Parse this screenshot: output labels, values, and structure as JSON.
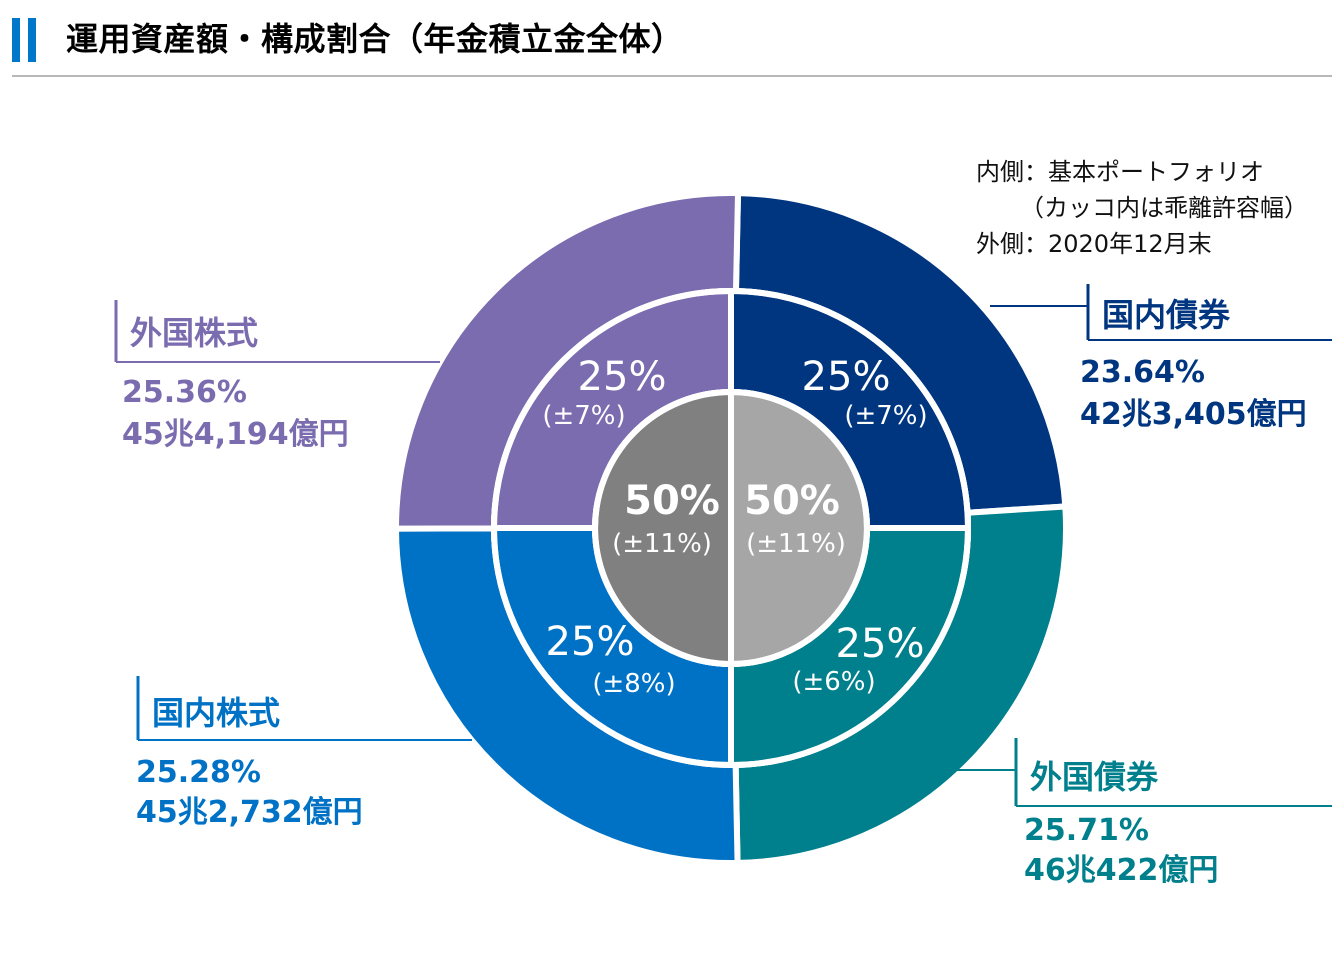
{
  "title": "運用資産額・構成割合（年金積立金全体）",
  "notes": {
    "line1": "内側：基本ポートフォリオ",
    "line2": "（カッコ内は乖離許容幅）",
    "line3": "外側：2020年12月末"
  },
  "colors": {
    "domestic_bonds": "#003580",
    "foreign_bonds": "#007f8c",
    "domestic_stocks": "#0072c6",
    "foreign_stocks": "#7b6baf",
    "bonds_total": "#a6a6a6",
    "stocks_total": "#808080",
    "accent": "#0077c8"
  },
  "chart_data": {
    "type": "pie",
    "rings": [
      {
        "ring": "outer",
        "slices": [
          {
            "key": "domestic_bonds",
            "name": "国内債券",
            "percent_label": "23.64%",
            "amount_label": "42兆3,405億円",
            "value": 23.64
          },
          {
            "key": "foreign_bonds",
            "name": "外国債券",
            "percent_label": "25.71%",
            "amount_label": "46兆422億円",
            "value": 25.71
          },
          {
            "key": "domestic_stocks",
            "name": "国内株式",
            "percent_label": "25.28%",
            "amount_label": "45兆2,732億円",
            "value": 25.28
          },
          {
            "key": "foreign_stocks",
            "name": "外国株式",
            "percent_label": "25.36%",
            "amount_label": "45兆4,194億円",
            "value": 25.36
          }
        ]
      },
      {
        "ring": "middle",
        "slices": [
          {
            "key": "domestic_bonds",
            "label": "25%",
            "range": "(±7%)",
            "value": 25
          },
          {
            "key": "foreign_bonds",
            "label": "25%",
            "range": "(±6%)",
            "value": 25
          },
          {
            "key": "domestic_stocks",
            "label": "25%",
            "range": "(±8%)",
            "value": 25
          },
          {
            "key": "foreign_stocks",
            "label": "25%",
            "range": "(±7%)",
            "value": 25
          }
        ]
      },
      {
        "ring": "inner",
        "slices": [
          {
            "key": "bonds_total",
            "label": "50%",
            "range": "(±11%)",
            "value": 50
          },
          {
            "key": "stocks_total",
            "label": "50%",
            "range": "(±11%)",
            "value": 50
          }
        ]
      }
    ]
  }
}
